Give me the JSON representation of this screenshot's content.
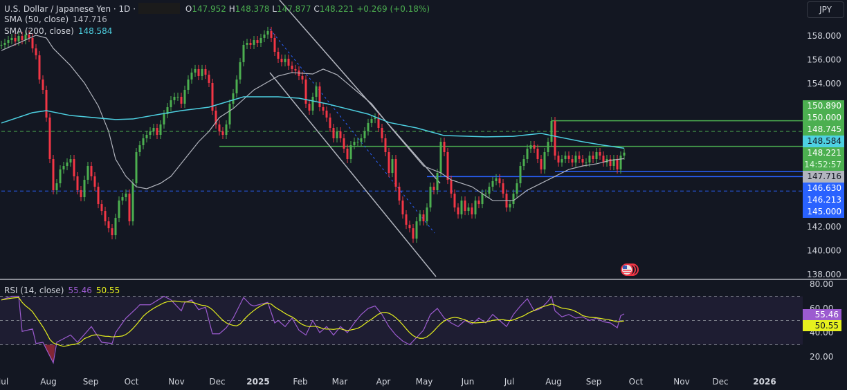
{
  "header": {
    "symbol": "U.S. Dollar / Japanese Yen · 1D ·",
    "open_label": "O",
    "open": "147.952",
    "high_label": "H",
    "high": "148.378",
    "low_label": "L",
    "low": "147.877",
    "close_label": "C",
    "close": "148.221",
    "change": "+0.269 (+0.18%)",
    "sma50_label": "SMA (50, close)",
    "sma50_value": "147.716",
    "sma200_label": "SMA (200, close)",
    "sma200_value": "148.584",
    "currency_button": "JPY"
  },
  "rsi_header": {
    "label": "RSI (14, close)",
    "rsi_value": "55.46",
    "ma_value": "50.55"
  },
  "price_labels": {
    "green_group": [
      "150.890",
      "150.000",
      "148.745"
    ],
    "sma200": "148.584",
    "last": "148.221",
    "countdown": "14:52:57",
    "sma50": "147.716",
    "blue_group": [
      "146.630",
      "146.213",
      "145.000"
    ]
  },
  "rsi_labels": {
    "rsi": "55.46",
    "ma": "50.55"
  },
  "colors": {
    "background": "#131722",
    "up": "#4caf50",
    "down": "#f23645",
    "sma50": "#b2b5be",
    "sma200": "#4dd0e1",
    "rsi": "#9c5bd0",
    "rsi_ma": "#e6f01e",
    "level_green": "#4caf50",
    "level_blue": "#2962ff",
    "trendline": "#b2b5be"
  },
  "chart_data": [
    {
      "type": "candlestick",
      "title": "U.S. Dollar / Japanese Yen · 1D",
      "ylim": [
        138,
        159
      ],
      "y_ticks": [
        "158.000",
        "156.000",
        "154.000",
        "142.000",
        "140.000",
        "138.000"
      ],
      "x_ticks": [
        "Jul",
        "Aug",
        "Sep",
        "Oct",
        "Nov",
        "Dec",
        "2025",
        "Feb",
        "Mar",
        "Apr",
        "May",
        "Jun",
        "Jul",
        "Aug",
        "Sep",
        "Oct",
        "Nov",
        "Dec",
        "2026"
      ],
      "closes": [
        157.25,
        157.42,
        157.65,
        157.83,
        157.54,
        158.0,
        157.65,
        158.12,
        157.83,
        156.96,
        156.38,
        154.35,
        153.48,
        151.16,
        147.68,
        145.07,
        145.65,
        146.81,
        147.1,
        147.39,
        147.68,
        146.23,
        145.07,
        144.49,
        145.94,
        147.1,
        146.23,
        145.36,
        143.91,
        143.33,
        142.46,
        141.88,
        141.3,
        142.75,
        144.2,
        144.49,
        144.78,
        142.46,
        145.65,
        148.26,
        148.84,
        149.42,
        149.71,
        150.0,
        150.29,
        149.71,
        150.58,
        151.45,
        152.03,
        152.61,
        152.9,
        152.9,
        152.32,
        153.48,
        154.35,
        154.93,
        155.22,
        154.64,
        155.22,
        154.75,
        154.06,
        151.74,
        150.58,
        150.0,
        149.71,
        150.58,
        152.32,
        153.19,
        154.35,
        155.8,
        157.25,
        157.42,
        157.25,
        157.65,
        157.42,
        157.83,
        158.12,
        158.41,
        157.83,
        156.67,
        156.09,
        155.8,
        156.09,
        155.51,
        155.22,
        155.1,
        154.64,
        154.35,
        152.32,
        151.74,
        152.9,
        153.77,
        152.03,
        151.74,
        151.16,
        150.29,
        149.42,
        150.0,
        149.42,
        148.55,
        147.68,
        148.84,
        149.13,
        149.13,
        149.42,
        150.0,
        150.7,
        151.04,
        151.16,
        150.29,
        149.42,
        148.26,
        146.52,
        147.68,
        145.36,
        144.2,
        143.04,
        142.17,
        141.88,
        141.01,
        142.46,
        143.04,
        142.46,
        143.62,
        145.36,
        145.07,
        146.52,
        149.13,
        148.26,
        145.94,
        144.78,
        143.62,
        143.04,
        144.2,
        143.33,
        143.62,
        143.04,
        144.2,
        143.91,
        144.78,
        144.78,
        145.36,
        145.83,
        146.06,
        145.65,
        144.78,
        143.62,
        143.91,
        144.78,
        145.65,
        147.1,
        147.68,
        148.55,
        148.84,
        148.55,
        147.68,
        146.81,
        148.26,
        149.13,
        150.87,
        147.97,
        147.39,
        147.68,
        147.97,
        147.68,
        147.39,
        147.97,
        147.68,
        147.39,
        147.39,
        147.97,
        147.68,
        148.26,
        147.97,
        147.39,
        147.68,
        147.1,
        147.68,
        146.81,
        147.97,
        148.22
      ],
      "series": [
        {
          "name": "SMA (50, close)",
          "points": [
            [
              0,
              156.78
            ],
            [
              6,
              157.54
            ],
            [
              10,
              158.06
            ],
            [
              13,
              157.83
            ],
            [
              15,
              156.96
            ],
            [
              20,
              155.51
            ],
            [
              24,
              154.06
            ],
            [
              28,
              152.14
            ],
            [
              31,
              150.0
            ],
            [
              33,
              147.68
            ],
            [
              36,
              146.23
            ],
            [
              39,
              145.36
            ],
            [
              42,
              145.19
            ],
            [
              46,
              145.65
            ],
            [
              49,
              146.23
            ],
            [
              53,
              147.68
            ],
            [
              57,
              149.13
            ],
            [
              60,
              150.0
            ],
            [
              63,
              151.16
            ],
            [
              67,
              151.91
            ],
            [
              73,
              153.48
            ],
            [
              80,
              154.64
            ],
            [
              84,
              154.93
            ],
            [
              90,
              154.81
            ],
            [
              93,
              155.22
            ],
            [
              97,
              154.75
            ],
            [
              107,
              152.32
            ],
            [
              113,
              150.17
            ],
            [
              122,
              147.1
            ],
            [
              127,
              146.52
            ],
            [
              130,
              145.94
            ],
            [
              136,
              145.36
            ],
            [
              142,
              144.2
            ],
            [
              148,
              144.2
            ],
            [
              152,
              145.07
            ],
            [
              156,
              145.65
            ],
            [
              160,
              146.23
            ],
            [
              164,
              146.81
            ],
            [
              168,
              147.1
            ],
            [
              172,
              147.28
            ],
            [
              176,
              147.57
            ],
            [
              180,
              147.716
            ]
          ]
        },
        {
          "name": "SMA (200, close)",
          "points": [
            [
              0,
              150.7
            ],
            [
              9,
              151.57
            ],
            [
              13,
              151.74
            ],
            [
              20,
              151.33
            ],
            [
              33,
              150.99
            ],
            [
              38,
              151.04
            ],
            [
              46,
              151.45
            ],
            [
              52,
              151.74
            ],
            [
              60,
              152.03
            ],
            [
              70,
              152.9
            ],
            [
              80,
              152.9
            ],
            [
              86,
              152.78
            ],
            [
              94,
              152.32
            ],
            [
              106,
              151.45
            ],
            [
              112,
              150.75
            ],
            [
              120,
              150.29
            ],
            [
              128,
              149.65
            ],
            [
              140,
              149.54
            ],
            [
              148,
              149.59
            ],
            [
              156,
              149.83
            ],
            [
              160,
              149.59
            ],
            [
              168,
              149.13
            ],
            [
              174,
              148.84
            ],
            [
              180,
              148.584
            ]
          ]
        }
      ],
      "levels": [
        {
          "price": 150.89,
          "style": "solid",
          "color": "green",
          "from_index": 159
        },
        {
          "price": 150.0,
          "style": "dashed",
          "color": "green",
          "from_index": 0
        },
        {
          "price": 148.745,
          "style": "solid",
          "color": "green",
          "from_index": 63
        },
        {
          "price": 146.63,
          "style": "solid",
          "color": "blue",
          "from_index": 160
        },
        {
          "price": 146.213,
          "style": "solid",
          "color": "blue",
          "from_index": 123
        },
        {
          "price": 145.0,
          "style": "dashed",
          "color": "blue",
          "from_index": 0
        }
      ]
    },
    {
      "type": "line",
      "title": "RSI (14, close)",
      "ylim": [
        10,
        85
      ],
      "y_ticks": [
        "80.00",
        "60.00",
        "40.00",
        "20.00"
      ],
      "bands": [
        70,
        50,
        30
      ],
      "series": [
        {
          "name": "RSI",
          "points": [
            [
              0,
              67
            ],
            [
              3,
              70
            ],
            [
              5,
              70
            ],
            [
              6,
              41
            ],
            [
              9,
              43
            ],
            [
              10,
              31
            ],
            [
              12,
              32
            ],
            [
              15,
              15
            ],
            [
              16,
              32
            ],
            [
              20,
              38
            ],
            [
              22,
              32
            ],
            [
              26,
              45
            ],
            [
              29,
              32
            ],
            [
              32,
              31
            ],
            [
              33,
              40
            ],
            [
              36,
              52
            ],
            [
              39,
              60
            ],
            [
              40,
              63
            ],
            [
              43,
              63
            ],
            [
              47,
              70
            ],
            [
              49,
              67
            ],
            [
              52,
              58
            ],
            [
              53,
              65
            ],
            [
              55,
              67
            ],
            [
              57,
              59
            ],
            [
              59,
              61
            ],
            [
              61,
              39
            ],
            [
              63,
              39
            ],
            [
              65,
              44
            ],
            [
              67,
              52
            ],
            [
              70,
              69
            ],
            [
              72,
              63
            ],
            [
              73,
              62
            ],
            [
              77,
              65
            ],
            [
              79,
              48
            ],
            [
              80,
              50
            ],
            [
              82,
              45
            ],
            [
              84,
              52
            ],
            [
              86,
              42
            ],
            [
              88,
              38
            ],
            [
              90,
              50
            ],
            [
              92,
              40
            ],
            [
              94,
              45
            ],
            [
              96,
              38
            ],
            [
              98,
              45
            ],
            [
              100,
              40
            ],
            [
              102,
              48
            ],
            [
              104,
              55
            ],
            [
              106,
              60
            ],
            [
              108,
              62
            ],
            [
              110,
              55
            ],
            [
              112,
              45
            ],
            [
              114,
              38
            ],
            [
              116,
              33
            ],
            [
              118,
              30
            ],
            [
              120,
              36
            ],
            [
              122,
              42
            ],
            [
              124,
              55
            ],
            [
              126,
              60
            ],
            [
              128,
              52
            ],
            [
              130,
              48
            ],
            [
              132,
              45
            ],
            [
              134,
              50
            ],
            [
              136,
              47
            ],
            [
              138,
              52
            ],
            [
              140,
              48
            ],
            [
              142,
              55
            ],
            [
              144,
              50
            ],
            [
              146,
              45
            ],
            [
              148,
              55
            ],
            [
              150,
              62
            ],
            [
              152,
              68
            ],
            [
              154,
              58
            ],
            [
              156,
              60
            ],
            [
              158,
              66
            ],
            [
              159,
              70
            ],
            [
              160,
              58
            ],
            [
              162,
              53
            ],
            [
              164,
              55
            ],
            [
              166,
              52
            ],
            [
              168,
              53
            ],
            [
              170,
              50
            ],
            [
              172,
              52
            ],
            [
              174,
              49
            ],
            [
              176,
              48
            ],
            [
              178,
              44
            ],
            [
              179,
              54
            ],
            [
              180,
              55.46
            ]
          ]
        }
      ]
    }
  ]
}
